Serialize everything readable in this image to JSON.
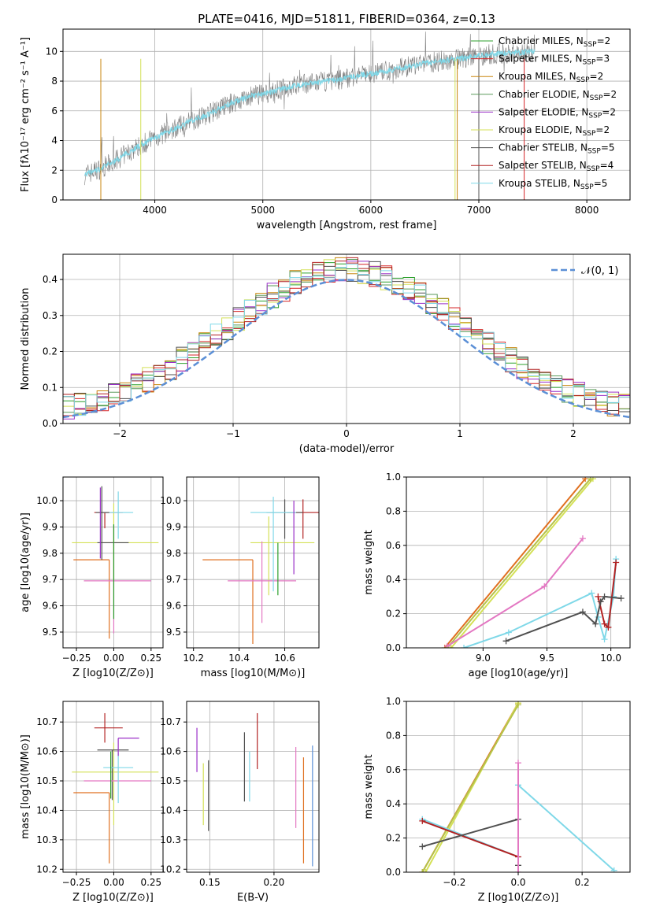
{
  "chart_data": [
    {
      "type": "line",
      "title": "PLATE=0416, MJD=51811, FIBERID=0364, z=0.13",
      "xlabel": "wavelength [Angstrom, rest frame]",
      "ylabel": "Flux [fλ10⁻¹⁷ erg cm⁻² s⁻¹ A⁻¹]",
      "xlim": [
        3150,
        8400
      ],
      "ylim": [
        0,
        11.5
      ],
      "xticks": [
        "4000",
        "5000",
        "6000",
        "7000",
        "8000"
      ],
      "yticks": [
        "0",
        "2",
        "4",
        "6",
        "8",
        "10"
      ],
      "legend_placement": "top-right",
      "legend": [
        {
          "label": "Chabrier MILES, N",
          "sub": "SSP",
          "tail": "=2",
          "color": "#2ca02c"
        },
        {
          "label": "Salpeter MILES, N",
          "sub": "SSP",
          "tail": "=3",
          "color": "#d62728"
        },
        {
          "label": "Kroupa MILES, N",
          "sub": "SSP",
          "tail": "=2",
          "color": "#c8860e"
        },
        {
          "label": "Chabrier ELODIE, N",
          "sub": "SSP",
          "tail": "=2",
          "color": "#5a9a5a"
        },
        {
          "label": "Salpeter ELODIE, N",
          "sub": "SSP",
          "tail": "=2",
          "color": "#9b30c8"
        },
        {
          "label": "Kroupa ELODIE, N",
          "sub": "SSP",
          "tail": "=2",
          "color": "#d4e157"
        },
        {
          "label": "Chabrier STELIB, N",
          "sub": "SSP",
          "tail": "=5",
          "color": "#505050"
        },
        {
          "label": "Salpeter STELIB, N",
          "sub": "SSP",
          "tail": "=4",
          "color": "#b22222"
        },
        {
          "label": "Kroupa STELIB, N",
          "sub": "SSP",
          "tail": "=5",
          "color": "#7fd8e8"
        }
      ],
      "spectrum_anchors": {
        "x": [
          3350,
          3500,
          3650,
          3800,
          3950,
          4100,
          4300,
          4500,
          4700,
          4900,
          5100,
          5300,
          5500,
          5700,
          5900,
          6100,
          6300,
          6500,
          6700,
          6900,
          7100,
          7300,
          7500
        ],
        "y": [
          1.7,
          2.1,
          2.7,
          3.4,
          4.0,
          4.5,
          5.2,
          5.8,
          6.5,
          7.0,
          7.3,
          7.7,
          7.9,
          8.1,
          8.4,
          8.6,
          8.9,
          9.2,
          9.4,
          9.6,
          9.8,
          9.9,
          10.0
        ]
      },
      "data_color": "#808080",
      "model_color": "#7fd8e8"
    },
    {
      "type": "line",
      "xlabel": "(data-model)/error",
      "ylabel": "Normed distribution",
      "xlim": [
        -2.5,
        2.5
      ],
      "ylim": [
        0,
        0.47
      ],
      "xticks": [
        "−2",
        "−1",
        "0",
        "1",
        "2"
      ],
      "yticks": [
        "0.0",
        "0.1",
        "0.2",
        "0.3",
        "0.4"
      ],
      "grid": true,
      "legend": [
        {
          "label": "𝒩(0, 1)",
          "color": "#5b8fd6",
          "style": "dashed"
        }
      ],
      "hist_bin_width": 0.1,
      "hist_colors": [
        "#2ca02c",
        "#d62728",
        "#c8860e",
        "#5a9a5a",
        "#9b30c8",
        "#d4e157",
        "#505050",
        "#b22222",
        "#7fd8e8"
      ]
    },
    {
      "type": "scatter",
      "xlabel": "Z [log10(Z/Z⊙)]",
      "ylabel": "age  [log10(age/yr)]",
      "xlim": [
        -0.34,
        0.33
      ],
      "ylim": [
        9.44,
        10.09
      ],
      "xticks": [
        "−0.25",
        "0.00",
        "0.25"
      ],
      "yticks": [
        "9.5",
        "9.6",
        "9.7",
        "9.8",
        "9.9",
        "10.0"
      ],
      "points": [
        {
          "x": -0.06,
          "xerr": [
            0.07,
            0.12
          ],
          "y": 9.955,
          "yerr": [
            0.06,
            0.0
          ],
          "color": "#b22222"
        },
        {
          "x": 0.0,
          "xerr": [
            0.28,
            0.3
          ],
          "y": 9.84,
          "yerr": [
            0.14,
            0.15
          ],
          "color": "#d4e157"
        },
        {
          "x": -0.03,
          "xerr": [
            0.24,
            0.0
          ],
          "y": 9.775,
          "yerr": [
            0.3,
            0.0
          ],
          "color": "#e07020"
        },
        {
          "x": -0.01,
          "xerr": [
            0.1,
            0.11
          ],
          "y": 9.84,
          "yerr": [
            0.0,
            0.0
          ],
          "color": "#505050"
        },
        {
          "x": 0.0,
          "xerr": [
            0.2,
            0.25
          ],
          "y": 9.695,
          "yerr": [
            0.2,
            0.21
          ],
          "color": "#e377c2"
        },
        {
          "x": 0.03,
          "xerr": [
            0.1,
            0.1
          ],
          "y": 9.955,
          "yerr": [
            0.1,
            0.08
          ],
          "color": "#7fd8e8"
        },
        {
          "x": -0.08,
          "xerr": [
            0.04,
            0.05
          ],
          "y": 9.955,
          "yerr": [
            0.18,
            0.1
          ],
          "color": "#505050"
        },
        {
          "x": -0.09,
          "xerr": [
            0.0,
            0.0
          ],
          "y": 9.9,
          "yerr": [
            0.12,
            0.15
          ],
          "color": "#9b30c8"
        },
        {
          "x": 0.0,
          "xerr": [
            0.0,
            0.0
          ],
          "y": 9.8,
          "yerr": [
            0.25,
            0.11
          ],
          "color": "#2ca02c"
        }
      ]
    },
    {
      "type": "scatter",
      "xlabel": "mass [log10(M/M⊙)]",
      "ylabel": "",
      "xlim": [
        10.17,
        10.75
      ],
      "ylim": [
        9.44,
        10.09
      ],
      "xticks": [
        "10.2",
        "10.4",
        "10.6"
      ],
      "yticks": [
        "9.5",
        "9.6",
        "9.7",
        "9.8",
        "9.9",
        "10.0"
      ],
      "points": [
        {
          "x": 10.68,
          "xerr": [
            0.07,
            0.08
          ],
          "y": 9.955,
          "yerr": [
            0.1,
            0.05
          ],
          "color": "#b22222"
        },
        {
          "x": 10.53,
          "xerr": [
            0.08,
            0.2
          ],
          "y": 9.84,
          "yerr": [
            0.2,
            0.1
          ],
          "color": "#d4e157"
        },
        {
          "x": 10.46,
          "xerr": [
            0.22,
            0.0
          ],
          "y": 9.775,
          "yerr": [
            0.32,
            0.0
          ],
          "color": "#e07020"
        },
        {
          "x": 10.6,
          "xerr": [
            0.08,
            0.08
          ],
          "y": 9.955,
          "yerr": [
            0.1,
            0.05
          ],
          "color": "#505050"
        },
        {
          "x": 10.5,
          "xerr": [
            0.15,
            0.15
          ],
          "y": 9.695,
          "yerr": [
            0.16,
            0.15
          ],
          "color": "#e377c2"
        },
        {
          "x": 10.55,
          "xerr": [
            0.1,
            0.1
          ],
          "y": 9.955,
          "yerr": [
            0.3,
            0.06
          ],
          "color": "#7fd8e8"
        },
        {
          "x": 10.64,
          "xerr": [
            0.0,
            0.0
          ],
          "y": 9.9,
          "yerr": [
            0.18,
            0.1
          ],
          "color": "#9b30c8"
        },
        {
          "x": 10.57,
          "xerr": [
            0.0,
            0.0
          ],
          "y": 9.84,
          "yerr": [
            0.2,
            0.0
          ],
          "color": "#2ca02c"
        }
      ]
    },
    {
      "type": "line",
      "xlabel": "age  [log10(age/yr)]",
      "ylabel": "mass weight",
      "xlim": [
        8.4,
        10.15
      ],
      "ylim": [
        0,
        1.0
      ],
      "xticks": [
        "9.0",
        "9.5",
        "10.0"
      ],
      "yticks": [
        "0.0",
        "0.2",
        "0.4",
        "0.6",
        "0.8",
        "1.0"
      ],
      "grid": true,
      "series": [
        {
          "color": "#e07020",
          "x": [
            8.7,
            9.8
          ],
          "y": [
            0.0,
            0.99
          ]
        },
        {
          "color": "#d4e157",
          "x": [
            8.75,
            9.86
          ],
          "y": [
            0.0,
            0.99
          ]
        },
        {
          "color": "#b5c24a",
          "x": [
            8.72,
            9.84
          ],
          "y": [
            0.0,
            0.99
          ]
        },
        {
          "color": "#e377c2",
          "x": [
            8.72,
            9.48,
            9.78
          ],
          "y": [
            0.01,
            0.36,
            0.64
          ]
        },
        {
          "color": "#7fd8e8",
          "x": [
            8.85,
            9.2,
            9.85,
            9.9,
            9.95,
            10.02,
            10.04
          ],
          "y": [
            0.0,
            0.09,
            0.32,
            0.18,
            0.05,
            0.3,
            0.52
          ]
        },
        {
          "color": "#b22222",
          "x": [
            9.9,
            9.95,
            9.98,
            10.04
          ],
          "y": [
            0.3,
            0.14,
            0.12,
            0.5
          ]
        },
        {
          "color": "#505050",
          "x": [
            9.18,
            9.78,
            9.88,
            9.92,
            9.95,
            10.08
          ],
          "y": [
            0.04,
            0.21,
            0.14,
            0.27,
            0.3,
            0.29
          ]
        }
      ]
    },
    {
      "type": "scatter",
      "xlabel": "Z [log10(Z/Z⊙)]",
      "ylabel": "mass [log10(M/M⊙)]",
      "xlim": [
        -0.34,
        0.33
      ],
      "ylim": [
        10.19,
        10.77
      ],
      "xticks": [
        "−0.25",
        "0.00",
        "0.25"
      ],
      "yticks": [
        "10.2",
        "10.3",
        "10.4",
        "10.5",
        "10.6",
        "10.7"
      ],
      "points": [
        {
          "x": -0.06,
          "xerr": [
            0.07,
            0.12
          ],
          "y": 10.68,
          "yerr": [
            0.05,
            0.05
          ],
          "color": "#b22222"
        },
        {
          "x": 0.0,
          "xerr": [
            0.28,
            0.3
          ],
          "y": 10.53,
          "yerr": [
            0.18,
            0.1
          ],
          "color": "#d4e157"
        },
        {
          "x": -0.03,
          "xerr": [
            0.24,
            0.0
          ],
          "y": 10.46,
          "yerr": [
            0.24,
            0.0
          ],
          "color": "#e07020"
        },
        {
          "x": -0.01,
          "xerr": [
            0.1,
            0.11
          ],
          "y": 10.605,
          "yerr": [
            0.17,
            0.0
          ],
          "color": "#505050"
        },
        {
          "x": 0.0,
          "xerr": [
            0.2,
            0.25
          ],
          "y": 10.5,
          "yerr": [
            0.0,
            0.0
          ],
          "color": "#e377c2"
        },
        {
          "x": 0.03,
          "xerr": [
            0.1,
            0.1
          ],
          "y": 10.545,
          "yerr": [
            0.12,
            0.05
          ],
          "color": "#7fd8e8"
        },
        {
          "x": 0.03,
          "xerr": [
            0.0,
            0.14
          ],
          "y": 10.645,
          "yerr": [
            0.06,
            0.0
          ],
          "color": "#9b30c8"
        },
        {
          "x": -0.02,
          "xerr": [
            0.0,
            0.0
          ],
          "y": 10.5,
          "yerr": [
            0.06,
            0.1
          ],
          "color": "#2ca02c"
        }
      ]
    },
    {
      "type": "scatter",
      "xlabel": "E(B-V)",
      "ylabel": "",
      "xlim": [
        0.132,
        0.235
      ],
      "ylim": [
        10.19,
        10.77
      ],
      "xticks": [
        "0.15",
        "0.20"
      ],
      "yticks": [
        "10.2",
        "10.3",
        "10.4",
        "10.5",
        "10.6",
        "10.7"
      ],
      "points": [
        {
          "x": 0.14,
          "y0": 10.53,
          "y1": 10.68,
          "color": "#9b30c8"
        },
        {
          "x": 0.145,
          "y0": 10.35,
          "y1": 10.56,
          "color": "#d4e157"
        },
        {
          "x": 0.149,
          "y0": 10.33,
          "y1": 10.57,
          "color": "#505050"
        },
        {
          "x": 0.177,
          "y0": 10.43,
          "y1": 10.665,
          "color": "#505050"
        },
        {
          "x": 0.181,
          "y0": 10.43,
          "y1": 10.6,
          "color": "#7fd8e8"
        },
        {
          "x": 0.187,
          "y0": 10.54,
          "y1": 10.73,
          "color": "#b22222"
        },
        {
          "x": 0.217,
          "y0": 10.34,
          "y1": 10.615,
          "color": "#e377c2"
        },
        {
          "x": 0.223,
          "y0": 10.22,
          "y1": 10.58,
          "color": "#e07020"
        },
        {
          "x": 0.23,
          "y0": 10.21,
          "y1": 10.62,
          "color": "#5b8fd6"
        }
      ]
    },
    {
      "type": "line",
      "xlabel": "Z [log10(Z/Z⊙)]",
      "ylabel": "mass weight",
      "xlim": [
        -0.35,
        0.35
      ],
      "ylim": [
        0,
        1.0
      ],
      "xticks": [
        "−0.2",
        "0.0",
        "0.2"
      ],
      "yticks": [
        "0.0",
        "0.2",
        "0.4",
        "0.6",
        "0.8",
        "1.0"
      ],
      "grid": true,
      "series": [
        {
          "color": "#e07020",
          "x": [
            -0.3,
            0.0
          ],
          "y": [
            0.0,
            0.99
          ]
        },
        {
          "color": "#d4e157",
          "x": [
            -0.29,
            0.0
          ],
          "y": [
            0.0,
            0.99
          ]
        },
        {
          "color": "#b5c24a",
          "x": [
            -0.3,
            0.0
          ],
          "y": [
            0.0,
            0.98
          ]
        },
        {
          "color": "#7fd8e8",
          "x": [
            -0.3,
            0.0,
            0.0,
            0.3
          ],
          "y": [
            0.31,
            0.09,
            0.51,
            0.01
          ]
        },
        {
          "color": "#b22222",
          "x": [
            -0.3,
            0.0
          ],
          "y": [
            0.3,
            0.09
          ]
        },
        {
          "color": "#505050",
          "x": [
            -0.3,
            0.0,
            0.0
          ],
          "y": [
            0.15,
            0.31,
            0.04
          ]
        },
        {
          "color": "#e377c2",
          "x": [
            0.0,
            0.0
          ],
          "y": [
            0.0,
            0.64
          ]
        }
      ]
    }
  ]
}
